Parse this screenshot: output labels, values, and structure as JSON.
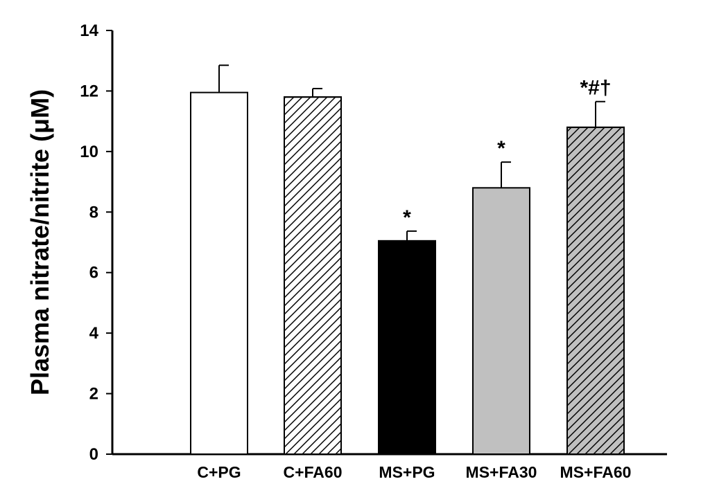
{
  "chart_data": {
    "type": "bar",
    "title": "",
    "xlabel": "",
    "ylabel": "Plasma nitrate/nitrite (μM)",
    "ylim": [
      0,
      14
    ],
    "yticks": [
      0,
      2,
      4,
      6,
      8,
      10,
      12,
      14
    ],
    "grid": false,
    "categories": [
      "C+PG",
      "C+FA60",
      "MS+PG",
      "MS+FA30",
      "MS+FA60"
    ],
    "values": [
      11.95,
      11.8,
      7.05,
      8.8,
      10.8
    ],
    "errors": [
      0.9,
      0.28,
      0.32,
      0.85,
      0.85
    ],
    "annotations": [
      "",
      "",
      "*",
      "*",
      "*#†"
    ],
    "bar_styles": [
      {
        "fill": "#ffffff",
        "hatch": false
      },
      {
        "fill": "#ffffff",
        "hatch": true
      },
      {
        "fill": "#000000",
        "hatch": false
      },
      {
        "fill": "#c0c0c0",
        "hatch": false
      },
      {
        "fill": "#c0c0c0",
        "hatch": true
      }
    ]
  }
}
